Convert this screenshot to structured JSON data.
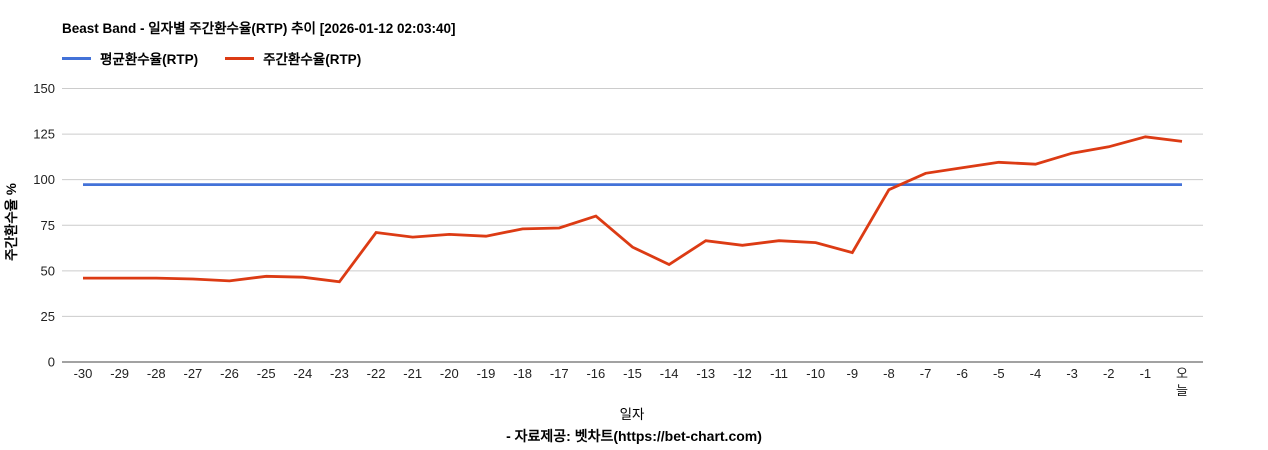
{
  "header": {
    "title": "Beast Band - 일자별 주간환수율(RTP) 추이 [2026-01-12 02:03:40]"
  },
  "legend": {
    "items": [
      {
        "label": "평균환수율(RTP)",
        "color": "#4372d8"
      },
      {
        "label": "주간환수율(RTP)",
        "color": "#dc3b14"
      }
    ]
  },
  "footer": {
    "credit": "- 자료제공: 벳차트(https://bet-chart.com)"
  },
  "chart_data": {
    "type": "line",
    "title": "Beast Band - 일자별 주간환수율(RTP) 추이 [2026-01-12 02:03:40]",
    "xlabel": "일자",
    "ylabel": "주간환수율 %",
    "ylim": [
      0,
      150
    ],
    "yticks": [
      0,
      25,
      50,
      75,
      100,
      125,
      150
    ],
    "grid": true,
    "legend_position": "top",
    "categories": [
      "-30",
      "-29",
      "-28",
      "-27",
      "-26",
      "-25",
      "-24",
      "-23",
      "-22",
      "-21",
      "-20",
      "-19",
      "-18",
      "-17",
      "-16",
      "-15",
      "-14",
      "-13",
      "-12",
      "-11",
      "-10",
      "-9",
      "-8",
      "-7",
      "-6",
      "-5",
      "-4",
      "-3",
      "-2",
      "-1",
      "오늘"
    ],
    "series": [
      {
        "name": "평균환수율(RTP)",
        "color": "#4372d8",
        "values": [
          97.3,
          97.3,
          97.3,
          97.3,
          97.3,
          97.3,
          97.3,
          97.3,
          97.3,
          97.3,
          97.3,
          97.3,
          97.3,
          97.3,
          97.3,
          97.3,
          97.3,
          97.3,
          97.3,
          97.3,
          97.3,
          97.3,
          97.3,
          97.3,
          97.3,
          97.3,
          97.3,
          97.3,
          97.3,
          97.3,
          97.3
        ]
      },
      {
        "name": "주간환수율(RTP)",
        "color": "#dc3b14",
        "values": [
          46,
          46,
          46,
          45.5,
          44.5,
          47,
          46.5,
          44,
          71,
          68.5,
          70,
          69,
          73,
          73.5,
          80,
          63,
          53.5,
          66.5,
          64,
          66.5,
          65.5,
          60,
          94.5,
          103.5,
          106.5,
          109.5,
          108.5,
          114.5,
          118,
          123.5,
          121
        ]
      }
    ]
  },
  "colors": {
    "grid": "#cccccc",
    "axis": "#444444",
    "tick_text": "#222222"
  }
}
